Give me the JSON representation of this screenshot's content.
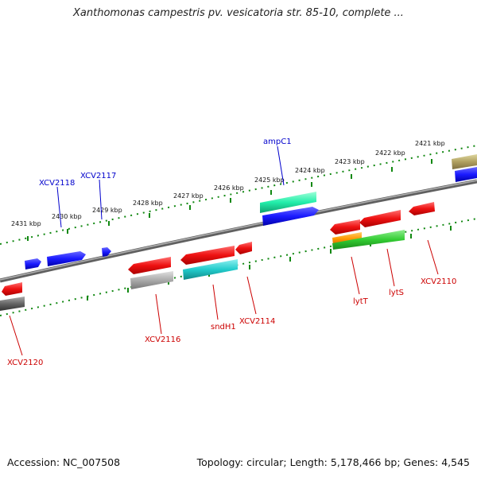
{
  "title": "Xanthomonas campestris pv. vesicatoria str. 85-10, complete ...",
  "footer": {
    "accession": "Accession: NC_007508",
    "summary": "Topology: circular; Length: 5,178,466 bp; Genes: 4,545"
  },
  "scale_labels": [
    "2431 kbp",
    "2430 kbp",
    "2429 kbp",
    "2428 kbp",
    "2427 kbp",
    "2426 kbp",
    "2425 kbp",
    "2424 kbp",
    "2423 kbp",
    "2422 kbp",
    "2421 kbp"
  ],
  "gene_labels_top": [
    "XCV2118",
    "XCV2117",
    "ampC1"
  ],
  "gene_labels_bottom": [
    "XCV2120",
    "XCV2116",
    "sndH1",
    "XCV2114",
    "lytT",
    "lytS",
    "XCV2110"
  ],
  "colors": {
    "backbone": "#808080",
    "tick": "#118811",
    "top_strand_gene": "#1a1aff",
    "bottom_strand_gene": "#ee1111",
    "top_label": "#0000cc",
    "bottom_label": "#cc0000",
    "cds_cyan": "#22cccc",
    "cds_green": "#33cc33",
    "cds_teal": "#22eeaa",
    "cds_grey": "#aaaaaa",
    "cds_darkgrey": "#666666",
    "cds_orange": "#ff9900",
    "cds_olive": "#b0a060"
  }
}
